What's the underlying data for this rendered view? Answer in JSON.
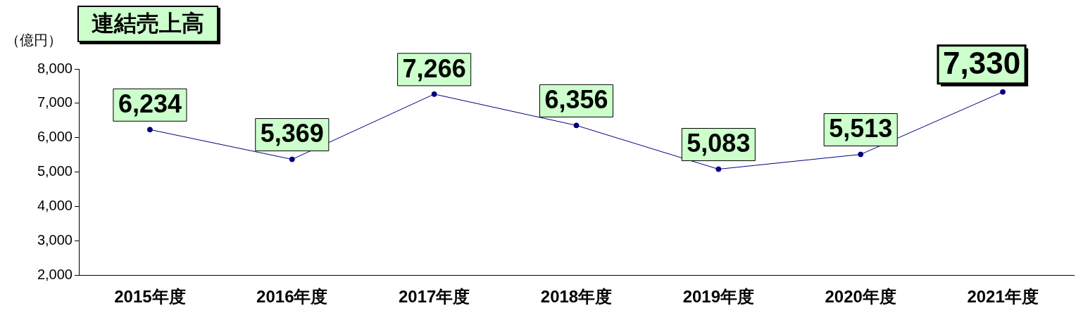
{
  "chart_data": {
    "type": "line",
    "title": "連結売上高",
    "ylabel": "（億円）",
    "categories": [
      "2015年度",
      "2016年度",
      "2017年度",
      "2018年度",
      "2019年度",
      "2020年度",
      "2021年度"
    ],
    "series": [
      {
        "color": "#000080",
        "values": [
          6234,
          5369,
          7266,
          6356,
          5083,
          5513,
          7330
        ],
        "value_labels": [
          "6,234",
          "5,369",
          "7,266",
          "6,356",
          "5,083",
          "5,513",
          "7,330"
        ]
      }
    ],
    "ylim": [
      2000,
      8000
    ],
    "yticks": [
      {
        "value": 2000,
        "label": "2,000"
      },
      {
        "value": 3000,
        "label": "3,000"
      },
      {
        "value": 4000,
        "label": "4,000"
      },
      {
        "value": 5000,
        "label": "5,000"
      },
      {
        "value": 6000,
        "label": "6,000"
      },
      {
        "value": 7000,
        "label": "7,000"
      },
      {
        "value": 8000,
        "label": "8,000"
      }
    ],
    "grid": false,
    "legend": false,
    "marker": "circle",
    "line_style": "solid"
  }
}
